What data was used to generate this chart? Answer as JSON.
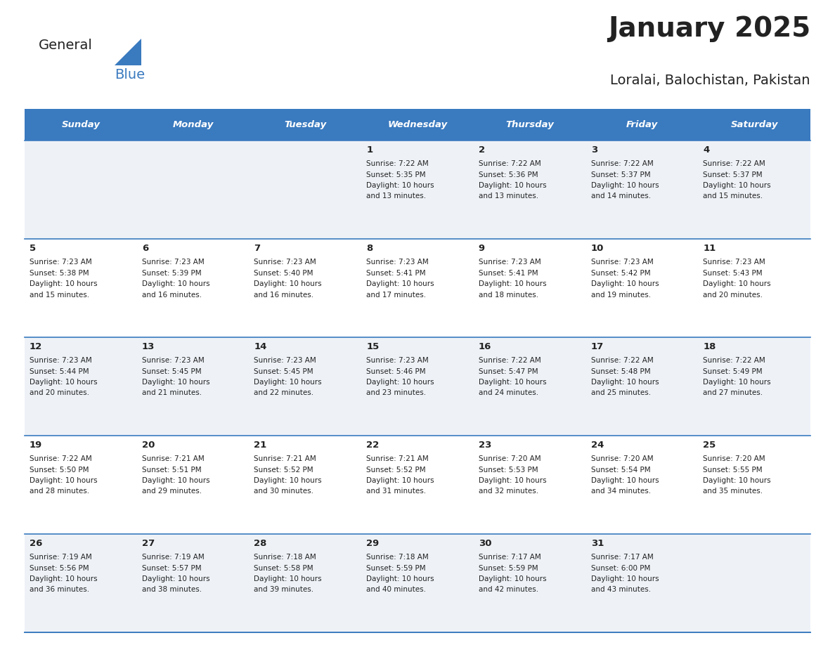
{
  "title": "January 2025",
  "subtitle": "Loralai, Balochistan, Pakistan",
  "header_bg": "#3a7abf",
  "header_text_color": "#ffffff",
  "cell_bg_odd": "#eef2f7",
  "cell_bg_even": "#ffffff",
  "divider_color": "#3a7abf",
  "text_color": "#222222",
  "days_of_week": [
    "Sunday",
    "Monday",
    "Tuesday",
    "Wednesday",
    "Thursday",
    "Friday",
    "Saturday"
  ],
  "calendar_data": [
    [
      {
        "day": "",
        "sunrise": "",
        "sunset": "",
        "daylight": ""
      },
      {
        "day": "",
        "sunrise": "",
        "sunset": "",
        "daylight": ""
      },
      {
        "day": "",
        "sunrise": "",
        "sunset": "",
        "daylight": ""
      },
      {
        "day": "1",
        "sunrise": "7:22 AM",
        "sunset": "5:35 PM",
        "daylight": "10 hours\nand 13 minutes."
      },
      {
        "day": "2",
        "sunrise": "7:22 AM",
        "sunset": "5:36 PM",
        "daylight": "10 hours\nand 13 minutes."
      },
      {
        "day": "3",
        "sunrise": "7:22 AM",
        "sunset": "5:37 PM",
        "daylight": "10 hours\nand 14 minutes."
      },
      {
        "day": "4",
        "sunrise": "7:22 AM",
        "sunset": "5:37 PM",
        "daylight": "10 hours\nand 15 minutes."
      }
    ],
    [
      {
        "day": "5",
        "sunrise": "7:23 AM",
        "sunset": "5:38 PM",
        "daylight": "10 hours\nand 15 minutes."
      },
      {
        "day": "6",
        "sunrise": "7:23 AM",
        "sunset": "5:39 PM",
        "daylight": "10 hours\nand 16 minutes."
      },
      {
        "day": "7",
        "sunrise": "7:23 AM",
        "sunset": "5:40 PM",
        "daylight": "10 hours\nand 16 minutes."
      },
      {
        "day": "8",
        "sunrise": "7:23 AM",
        "sunset": "5:41 PM",
        "daylight": "10 hours\nand 17 minutes."
      },
      {
        "day": "9",
        "sunrise": "7:23 AM",
        "sunset": "5:41 PM",
        "daylight": "10 hours\nand 18 minutes."
      },
      {
        "day": "10",
        "sunrise": "7:23 AM",
        "sunset": "5:42 PM",
        "daylight": "10 hours\nand 19 minutes."
      },
      {
        "day": "11",
        "sunrise": "7:23 AM",
        "sunset": "5:43 PM",
        "daylight": "10 hours\nand 20 minutes."
      }
    ],
    [
      {
        "day": "12",
        "sunrise": "7:23 AM",
        "sunset": "5:44 PM",
        "daylight": "10 hours\nand 20 minutes."
      },
      {
        "day": "13",
        "sunrise": "7:23 AM",
        "sunset": "5:45 PM",
        "daylight": "10 hours\nand 21 minutes."
      },
      {
        "day": "14",
        "sunrise": "7:23 AM",
        "sunset": "5:45 PM",
        "daylight": "10 hours\nand 22 minutes."
      },
      {
        "day": "15",
        "sunrise": "7:23 AM",
        "sunset": "5:46 PM",
        "daylight": "10 hours\nand 23 minutes."
      },
      {
        "day": "16",
        "sunrise": "7:22 AM",
        "sunset": "5:47 PM",
        "daylight": "10 hours\nand 24 minutes."
      },
      {
        "day": "17",
        "sunrise": "7:22 AM",
        "sunset": "5:48 PM",
        "daylight": "10 hours\nand 25 minutes."
      },
      {
        "day": "18",
        "sunrise": "7:22 AM",
        "sunset": "5:49 PM",
        "daylight": "10 hours\nand 27 minutes."
      }
    ],
    [
      {
        "day": "19",
        "sunrise": "7:22 AM",
        "sunset": "5:50 PM",
        "daylight": "10 hours\nand 28 minutes."
      },
      {
        "day": "20",
        "sunrise": "7:21 AM",
        "sunset": "5:51 PM",
        "daylight": "10 hours\nand 29 minutes."
      },
      {
        "day": "21",
        "sunrise": "7:21 AM",
        "sunset": "5:52 PM",
        "daylight": "10 hours\nand 30 minutes."
      },
      {
        "day": "22",
        "sunrise": "7:21 AM",
        "sunset": "5:52 PM",
        "daylight": "10 hours\nand 31 minutes."
      },
      {
        "day": "23",
        "sunrise": "7:20 AM",
        "sunset": "5:53 PM",
        "daylight": "10 hours\nand 32 minutes."
      },
      {
        "day": "24",
        "sunrise": "7:20 AM",
        "sunset": "5:54 PM",
        "daylight": "10 hours\nand 34 minutes."
      },
      {
        "day": "25",
        "sunrise": "7:20 AM",
        "sunset": "5:55 PM",
        "daylight": "10 hours\nand 35 minutes."
      }
    ],
    [
      {
        "day": "26",
        "sunrise": "7:19 AM",
        "sunset": "5:56 PM",
        "daylight": "10 hours\nand 36 minutes."
      },
      {
        "day": "27",
        "sunrise": "7:19 AM",
        "sunset": "5:57 PM",
        "daylight": "10 hours\nand 38 minutes."
      },
      {
        "day": "28",
        "sunrise": "7:18 AM",
        "sunset": "5:58 PM",
        "daylight": "10 hours\nand 39 minutes."
      },
      {
        "day": "29",
        "sunrise": "7:18 AM",
        "sunset": "5:59 PM",
        "daylight": "10 hours\nand 40 minutes."
      },
      {
        "day": "30",
        "sunrise": "7:17 AM",
        "sunset": "5:59 PM",
        "daylight": "10 hours\nand 42 minutes."
      },
      {
        "day": "31",
        "sunrise": "7:17 AM",
        "sunset": "6:00 PM",
        "daylight": "10 hours\nand 43 minutes."
      },
      {
        "day": "",
        "sunrise": "",
        "sunset": "",
        "daylight": ""
      }
    ]
  ]
}
